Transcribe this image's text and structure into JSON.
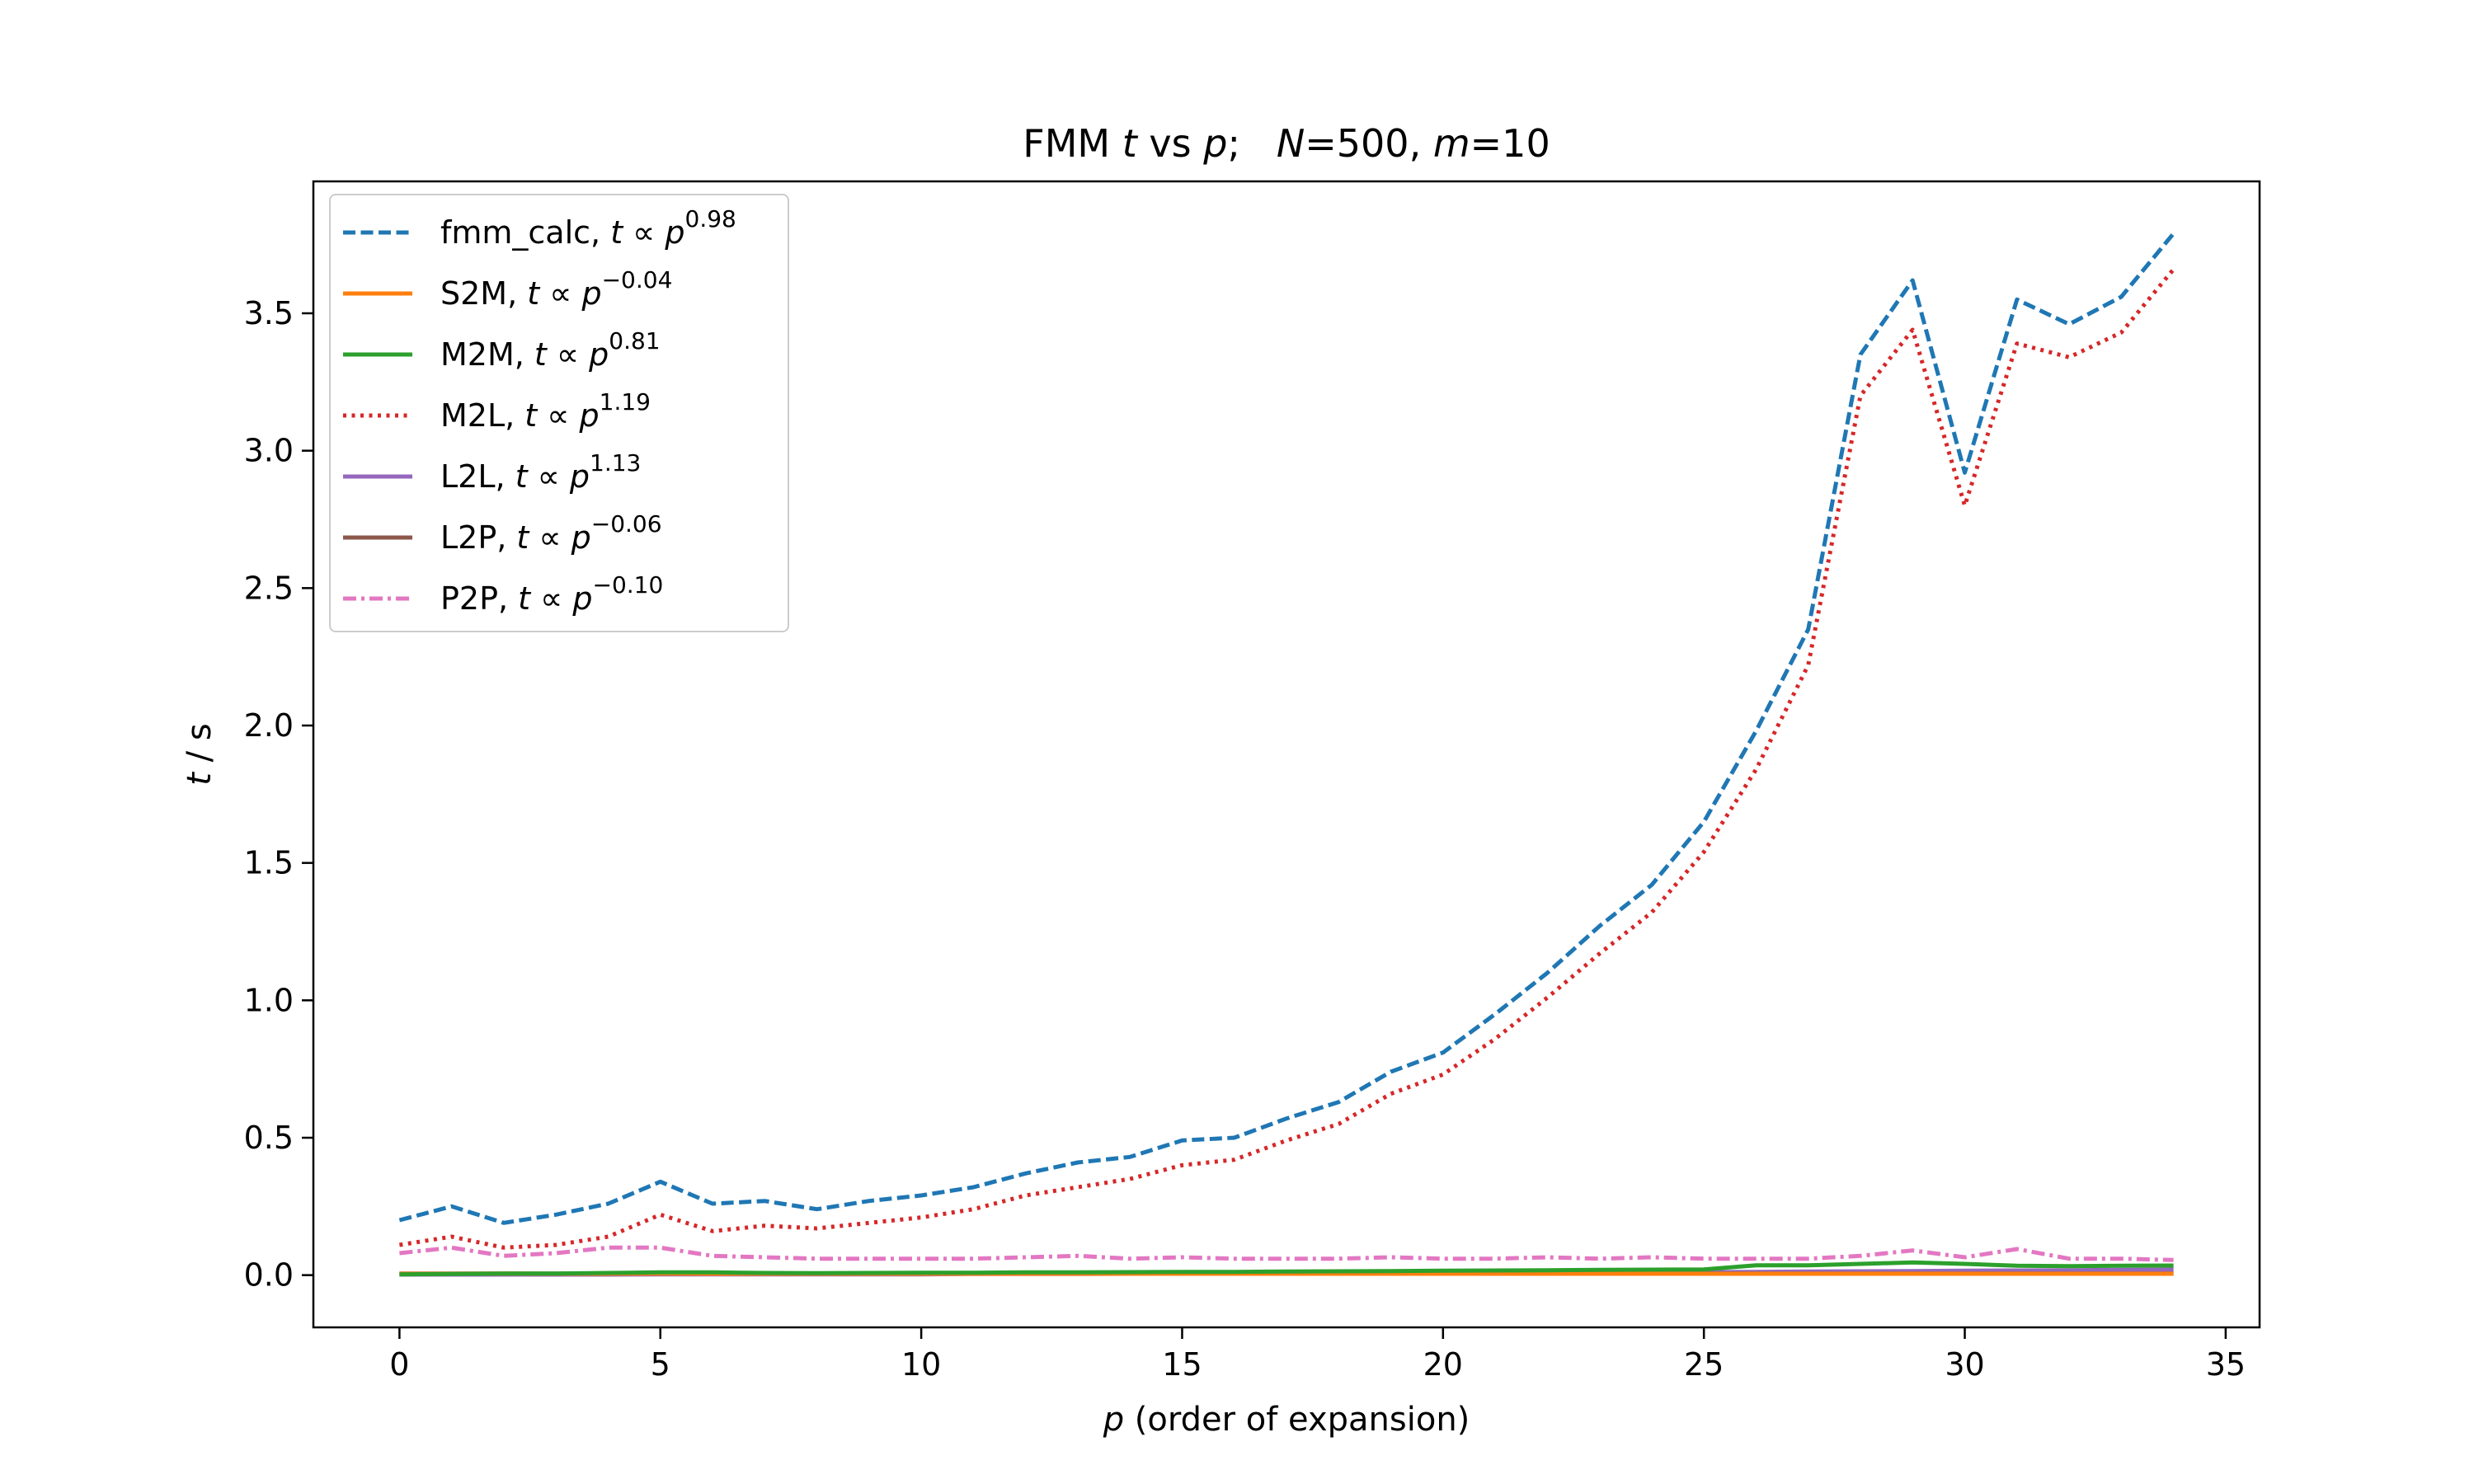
{
  "chart_data": {
    "type": "line",
    "title": {
      "prefix": "FMM ",
      "var_t": "t",
      "mid": " vs ",
      "var_p": "p",
      "sep": ";   ",
      "var_N": "N",
      "n_value": "=500, ",
      "var_m": "m",
      "m_value": "=10"
    },
    "xlabel": {
      "var": "p",
      "text": " (order of expansion)"
    },
    "ylabel": {
      "var": "t",
      "text": " / s"
    },
    "xlim": [
      -1.65,
      35.65
    ],
    "ylim": [
      -0.19,
      3.98
    ],
    "xticks": [
      0,
      5,
      10,
      15,
      20,
      25,
      30,
      35
    ],
    "xtick_labels": [
      "0",
      "5",
      "10",
      "15",
      "20",
      "25",
      "30",
      "35"
    ],
    "yticks": [
      0.0,
      0.5,
      1.0,
      1.5,
      2.0,
      2.5,
      3.0,
      3.5
    ],
    "ytick_labels": [
      "0.0",
      "0.5",
      "1.0",
      "1.5",
      "2.0",
      "2.5",
      "3.0",
      "3.5"
    ],
    "legend_position": "upper-left",
    "x": [
      0,
      1,
      2,
      3,
      4,
      5,
      6,
      7,
      8,
      9,
      10,
      11,
      12,
      13,
      14,
      15,
      16,
      17,
      18,
      19,
      20,
      21,
      22,
      23,
      24,
      25,
      26,
      27,
      28,
      29,
      30,
      31,
      32,
      33,
      34
    ],
    "series": [
      {
        "name": "fmm_calc",
        "legend_name": "fmm_calc,  ",
        "exponent": "0.98",
        "color": "#1f77b4",
        "style": "dashed",
        "values": [
          0.2,
          0.25,
          0.19,
          0.22,
          0.26,
          0.34,
          0.26,
          0.27,
          0.24,
          0.27,
          0.29,
          0.32,
          0.37,
          0.41,
          0.43,
          0.49,
          0.5,
          0.57,
          0.63,
          0.74,
          0.81,
          0.95,
          1.1,
          1.27,
          1.42,
          1.65,
          1.98,
          2.35,
          3.35,
          3.62,
          2.92,
          3.55,
          3.46,
          3.56,
          3.79
        ]
      },
      {
        "name": "S2M",
        "legend_name": "S2M,  ",
        "exponent": "−0.04",
        "color": "#ff7f0e",
        "style": "solid",
        "values": [
          0.005,
          0.005,
          0.006,
          0.005,
          0.005,
          0.006,
          0.005,
          0.005,
          0.005,
          0.005,
          0.005,
          0.005,
          0.005,
          0.005,
          0.005,
          0.005,
          0.005,
          0.005,
          0.005,
          0.005,
          0.005,
          0.005,
          0.005,
          0.005,
          0.005,
          0.005,
          0.005,
          0.005,
          0.005,
          0.005,
          0.005,
          0.005,
          0.005,
          0.005,
          0.005
        ]
      },
      {
        "name": "M2M",
        "legend_name": "M2M,  ",
        "exponent": "0.81",
        "color": "#2ca02c",
        "style": "solid",
        "values": [
          0.003,
          0.004,
          0.006,
          0.006,
          0.008,
          0.01,
          0.01,
          0.008,
          0.007,
          0.008,
          0.009,
          0.009,
          0.01,
          0.01,
          0.011,
          0.012,
          0.012,
          0.013,
          0.014,
          0.015,
          0.016,
          0.017,
          0.018,
          0.019,
          0.02,
          0.021,
          0.036,
          0.036,
          0.041,
          0.046,
          0.041,
          0.034,
          0.033,
          0.034,
          0.035
        ]
      },
      {
        "name": "M2L",
        "legend_name": "M2L,  ",
        "exponent": "1.19",
        "color": "#d62728",
        "style": "dotted",
        "values": [
          0.11,
          0.14,
          0.1,
          0.11,
          0.14,
          0.22,
          0.16,
          0.18,
          0.17,
          0.19,
          0.21,
          0.24,
          0.29,
          0.32,
          0.35,
          0.4,
          0.42,
          0.49,
          0.55,
          0.66,
          0.73,
          0.86,
          1.01,
          1.17,
          1.32,
          1.54,
          1.84,
          2.22,
          3.2,
          3.44,
          2.8,
          3.39,
          3.34,
          3.43,
          3.66
        ]
      },
      {
        "name": "L2L",
        "legend_name": "L2L,  ",
        "exponent": "1.13",
        "color": "#9467bd",
        "style": "solid",
        "values": [
          0.002,
          0.002,
          0.002,
          0.002,
          0.002,
          0.003,
          0.003,
          0.003,
          0.003,
          0.003,
          0.003,
          0.004,
          0.004,
          0.004,
          0.005,
          0.005,
          0.006,
          0.006,
          0.007,
          0.007,
          0.008,
          0.008,
          0.009,
          0.01,
          0.01,
          0.011,
          0.012,
          0.013,
          0.014,
          0.015,
          0.016,
          0.017,
          0.018,
          0.019,
          0.02
        ]
      },
      {
        "name": "L2P",
        "legend_name": "L2P,  ",
        "exponent": "−0.06",
        "color": "#8c564b",
        "style": "solid",
        "values": [
          0.006,
          0.006,
          0.006,
          0.006,
          0.006,
          0.006,
          0.006,
          0.006,
          0.006,
          0.006,
          0.006,
          0.006,
          0.006,
          0.006,
          0.006,
          0.006,
          0.006,
          0.006,
          0.006,
          0.006,
          0.006,
          0.006,
          0.006,
          0.006,
          0.006,
          0.006,
          0.006,
          0.006,
          0.006,
          0.006,
          0.006,
          0.006,
          0.006,
          0.006,
          0.006
        ]
      },
      {
        "name": "P2P",
        "legend_name": "P2P,  ",
        "exponent": "−0.10",
        "color": "#e377c2",
        "style": "dashdot",
        "values": [
          0.08,
          0.1,
          0.07,
          0.08,
          0.1,
          0.1,
          0.07,
          0.065,
          0.06,
          0.06,
          0.06,
          0.06,
          0.065,
          0.07,
          0.06,
          0.065,
          0.06,
          0.06,
          0.06,
          0.065,
          0.06,
          0.06,
          0.065,
          0.06,
          0.065,
          0.06,
          0.06,
          0.06,
          0.07,
          0.09,
          0.065,
          0.095,
          0.06,
          0.06,
          0.055
        ]
      }
    ],
    "legend_prop": "t ∝ p"
  }
}
